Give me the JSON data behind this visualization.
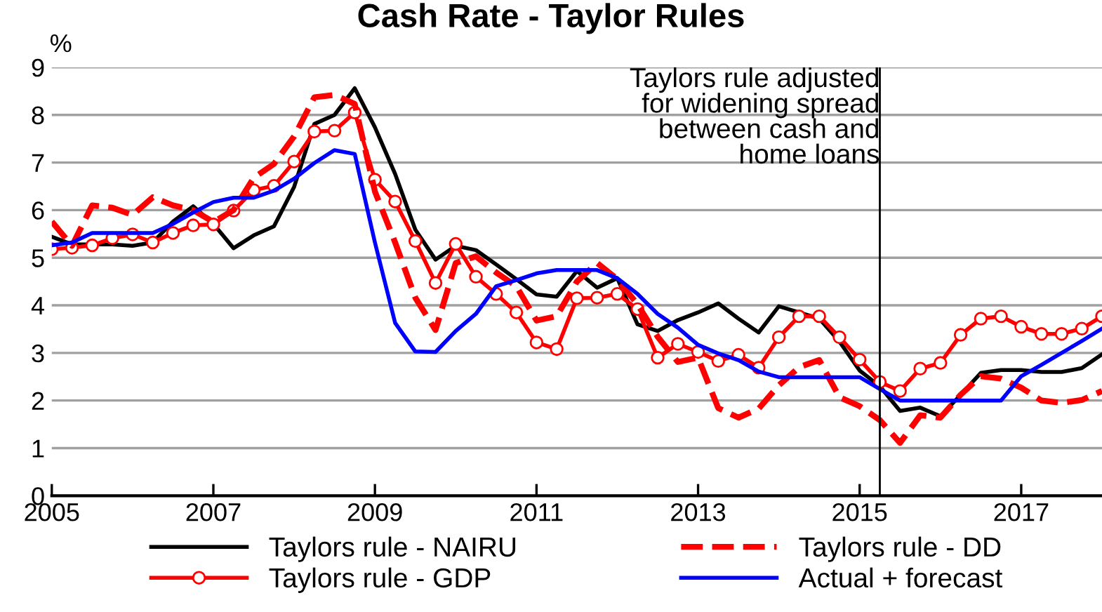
{
  "chart_data": {
    "type": "line",
    "title": "Cash Rate - Taylor Rules",
    "ylabel": "%",
    "x": [
      2005,
      2005.25,
      2005.5,
      2005.75,
      2006,
      2006.25,
      2006.5,
      2006.75,
      2007,
      2007.25,
      2007.5,
      2007.75,
      2008,
      2008.25,
      2008.5,
      2008.75,
      2009,
      2009.25,
      2009.5,
      2009.75,
      2010,
      2010.25,
      2010.5,
      2010.75,
      2011,
      2011.25,
      2011.5,
      2011.75,
      2012,
      2012.25,
      2012.5,
      2012.75,
      2013,
      2013.25,
      2013.5,
      2013.75,
      2014,
      2014.25,
      2014.5,
      2014.75,
      2015,
      2015.25,
      2015.5,
      2015.75,
      2016,
      2016.25,
      2016.5,
      2016.75,
      2017,
      2017.25,
      2017.5,
      2017.75,
      2018
    ],
    "series": [
      {
        "name": "Taylors rule - NAIRU",
        "color": "#000000",
        "line_style": "solid",
        "marker": "none",
        "values": [
          5.44,
          5.28,
          5.28,
          5.28,
          5.25,
          5.32,
          5.76,
          6.08,
          5.71,
          5.2,
          5.47,
          5.66,
          6.49,
          7.81,
          8.0,
          8.56,
          7.74,
          6.76,
          5.59,
          4.96,
          5.25,
          5.16,
          4.86,
          4.55,
          4.23,
          4.18,
          4.72,
          4.37,
          4.57,
          3.6,
          3.46,
          3.69,
          3.85,
          4.04,
          3.72,
          3.43,
          3.98,
          3.85,
          3.72,
          3.24,
          2.63,
          2.3,
          1.78,
          1.85,
          1.67,
          2.12,
          2.58,
          2.64,
          2.64,
          2.6,
          2.6,
          2.68,
          2.97
        ]
      },
      {
        "name": "Taylors rule - GDP",
        "color": "#ff0000",
        "line_style": "solid",
        "marker": "circle",
        "values": [
          5.18,
          5.21,
          5.26,
          5.41,
          5.49,
          5.32,
          5.52,
          5.68,
          5.7,
          5.99,
          6.42,
          6.51,
          7.02,
          7.65,
          7.67,
          8.05,
          6.64,
          6.18,
          5.35,
          4.47,
          5.29,
          4.6,
          4.24,
          3.85,
          3.22,
          3.08,
          4.15,
          4.16,
          4.24,
          3.92,
          2.9,
          3.19,
          3.02,
          2.83,
          2.96,
          2.69,
          3.33,
          3.77,
          3.77,
          3.33,
          2.86,
          2.39,
          2.2,
          2.67,
          2.79,
          3.38,
          3.72,
          3.77,
          3.55,
          3.4,
          3.4,
          3.51,
          3.77
        ]
      },
      {
        "name": "Taylors rule - DD",
        "color": "#ff0000",
        "line_style": "dashed",
        "marker": "none",
        "values": [
          5.76,
          5.25,
          6.1,
          6.05,
          5.9,
          6.27,
          6.1,
          6.0,
          5.75,
          6.0,
          6.68,
          6.97,
          7.55,
          8.37,
          8.42,
          8.23,
          6.39,
          5.32,
          4.16,
          3.48,
          4.89,
          5.03,
          4.69,
          4.4,
          3.68,
          3.77,
          4.5,
          4.89,
          4.55,
          4.02,
          3.34,
          2.81,
          2.9,
          1.84,
          1.64,
          1.83,
          2.32,
          2.7,
          2.85,
          2.07,
          1.88,
          1.59,
          1.11,
          1.69,
          1.64,
          2.12,
          2.51,
          2.46,
          2.27,
          2.0,
          1.95,
          2.01,
          2.2
        ]
      },
      {
        "name": "Actual + forecast",
        "color": "#0000ff",
        "line_style": "solid",
        "marker": "none",
        "values": [
          5.26,
          5.32,
          5.52,
          5.52,
          5.52,
          5.52,
          5.71,
          5.95,
          6.17,
          6.26,
          6.26,
          6.41,
          6.66,
          6.99,
          7.26,
          7.18,
          5.32,
          3.63,
          3.03,
          3.02,
          3.46,
          3.82,
          4.4,
          4.53,
          4.67,
          4.74,
          4.74,
          4.74,
          4.57,
          4.24,
          3.82,
          3.53,
          3.17,
          2.99,
          2.85,
          2.61,
          2.49,
          2.49,
          2.49,
          2.49,
          2.49,
          2.24,
          2.0,
          2.0,
          2.0,
          2.0,
          2.0,
          2.0,
          2.51,
          2.75,
          3.0,
          3.25,
          3.51
        ]
      }
    ],
    "xlim": [
      2005,
      2018
    ],
    "xticks": [
      2005,
      2007,
      2009,
      2011,
      2013,
      2015,
      2017
    ],
    "ylim": [
      0,
      9
    ],
    "yticks": [
      0,
      1,
      2,
      3,
      4,
      5,
      6,
      7,
      8,
      9
    ],
    "grid": "y",
    "legend": "bottom",
    "ref_lines": [
      {
        "axis": "x",
        "value": 2015.25,
        "color": "#000000"
      }
    ],
    "annotations": [
      {
        "text": "Taylors rule adjusted\nfor widening spread\nbetween cash and\nhome loans",
        "x": 2015.25,
        "y": 9
      }
    ]
  }
}
